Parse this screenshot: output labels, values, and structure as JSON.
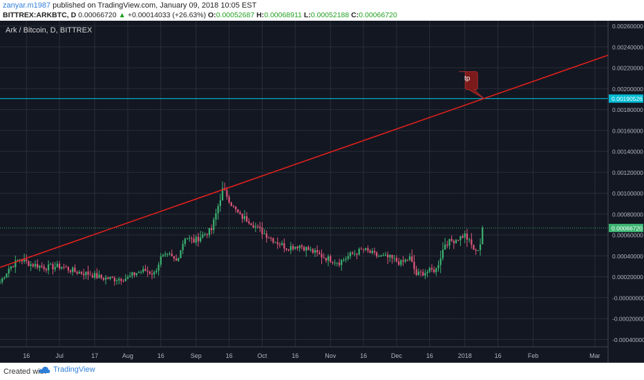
{
  "header": {
    "author": "zanyar.m1987",
    "published_text": "published on TradingView.com, January 09, 2018 10:05 EST",
    "symbol": "BITTREX:ARKBTC, D",
    "last_price": "0.00066720",
    "change_arrow": "▲",
    "change": "+0.00014033 (+26.63%)",
    "o_label": "O:",
    "o_value": "0.00052687",
    "h_label": "H:",
    "h_value": "0.00068911",
    "l_label": "L:",
    "l_value": "0.00052188",
    "c_label": "C:",
    "c_value": "0.00066720"
  },
  "legend": {
    "title": "Ark / Bitcoin, D, BITTREX"
  },
  "colors": {
    "background": "#131722",
    "grid": "#2a2e39",
    "up": "#26a69a",
    "up_green": "#3cb371",
    "down": "#e0577a",
    "trendline": "#e0201b",
    "hline": "#00bcd4",
    "callout": "#7a1a1a"
  },
  "annotations": {
    "callout_text": "tp",
    "hline_label": "0.00190526",
    "price_label": "0.00066720"
  },
  "footer": {
    "created_with": "Created with",
    "brand": "TradingView"
  },
  "chart_data": {
    "type": "candlestick",
    "title": "Ark / Bitcoin, D, BITTREX",
    "ylim": [
      -0.00047,
      0.00265
    ],
    "y_ticks": [
      "0.00260000",
      "0.00240000",
      "0.00220000",
      "0.00200000",
      "0.00180000",
      "0.00160000",
      "0.00140000",
      "0.00120000",
      "0.00100000",
      "0.00080000",
      "0.00060000",
      "0.00040000",
      "0.00020000",
      "-0.00000000",
      "-0.00020000",
      "-0.00040000"
    ],
    "y_tick_values": [
      0.0026,
      0.0024,
      0.0022,
      0.002,
      0.0018,
      0.0016,
      0.0014,
      0.0012,
      0.001,
      0.0008,
      0.0006,
      0.0004,
      0.0002,
      0,
      -0.0002,
      -0.0004
    ],
    "x_ticks": [
      "16",
      "Jul",
      "17",
      "Aug",
      "16",
      "Sep",
      "16",
      "Oct",
      "16",
      "Nov",
      "16",
      "Dec",
      "16",
      "2018",
      "16",
      "Feb",
      "Mar"
    ],
    "x_range": [
      "2017-06-04",
      "2018-03-07"
    ],
    "x_tick_dates": [
      "2017-06-16",
      "2017-07-01",
      "2017-07-17",
      "2017-08-01",
      "2017-08-16",
      "2017-09-01",
      "2017-09-16",
      "2017-10-01",
      "2017-10-16",
      "2017-11-01",
      "2017-11-16",
      "2017-12-01",
      "2017-12-16",
      "2018-01-01",
      "2018-01-16",
      "2018-02-01",
      "2018-03-01"
    ],
    "price_anchors": [
      [
        "2017-06-04",
        0.00015
      ],
      [
        "2017-06-08",
        0.00028
      ],
      [
        "2017-06-13",
        0.00037
      ],
      [
        "2017-06-18",
        0.00032
      ],
      [
        "2017-06-25",
        0.00029
      ],
      [
        "2017-07-02",
        0.0003
      ],
      [
        "2017-07-08",
        0.00025
      ],
      [
        "2017-07-14",
        0.00023
      ],
      [
        "2017-07-20",
        0.00019
      ],
      [
        "2017-07-26",
        0.00018
      ],
      [
        "2017-08-01",
        0.00019
      ],
      [
        "2017-08-05",
        0.00024
      ],
      [
        "2017-08-09",
        0.00026
      ],
      [
        "2017-08-13",
        0.00023
      ],
      [
        "2017-08-16",
        0.00038
      ],
      [
        "2017-08-20",
        0.0004
      ],
      [
        "2017-08-23",
        0.00035
      ],
      [
        "2017-08-27",
        0.00058
      ],
      [
        "2017-08-31",
        0.00054
      ],
      [
        "2017-09-04",
        0.0006
      ],
      [
        "2017-09-08",
        0.00065
      ],
      [
        "2017-09-11",
        0.00088
      ],
      [
        "2017-09-13",
        0.00103
      ],
      [
        "2017-09-15",
        0.00098
      ],
      [
        "2017-09-18",
        0.00086
      ],
      [
        "2017-09-21",
        0.00078
      ],
      [
        "2017-09-25",
        0.00074
      ],
      [
        "2017-09-29",
        0.00066
      ],
      [
        "2017-10-03",
        0.0006
      ],
      [
        "2017-10-07",
        0.00054
      ],
      [
        "2017-10-12",
        0.00048
      ],
      [
        "2017-10-18",
        0.0005
      ],
      [
        "2017-10-24",
        0.00044
      ],
      [
        "2017-10-30",
        0.00038
      ],
      [
        "2017-11-05",
        0.00034
      ],
      [
        "2017-11-11",
        0.00042
      ],
      [
        "2017-11-16",
        0.00046
      ],
      [
        "2017-11-22",
        0.0004
      ],
      [
        "2017-11-28",
        0.00038
      ],
      [
        "2017-12-03",
        0.00033
      ],
      [
        "2017-12-07",
        0.00038
      ],
      [
        "2017-12-10",
        0.00022
      ],
      [
        "2017-12-15",
        0.00025
      ],
      [
        "2017-12-19",
        0.00027
      ],
      [
        "2017-12-23",
        0.00052
      ],
      [
        "2017-12-27",
        0.00055
      ],
      [
        "2018-01-01",
        0.0006
      ],
      [
        "2018-01-04",
        0.0005
      ],
      [
        "2018-01-06",
        0.00043
      ],
      [
        "2018-01-08",
        0.00052
      ],
      [
        "2018-01-09",
        0.00066
      ]
    ],
    "trendline": {
      "start": [
        "2017-06-04",
        0.00029
      ],
      "end": [
        "2018-03-07",
        0.00232
      ]
    },
    "horizontal_line": 0.00190526,
    "last_close": 0.0006672
  }
}
